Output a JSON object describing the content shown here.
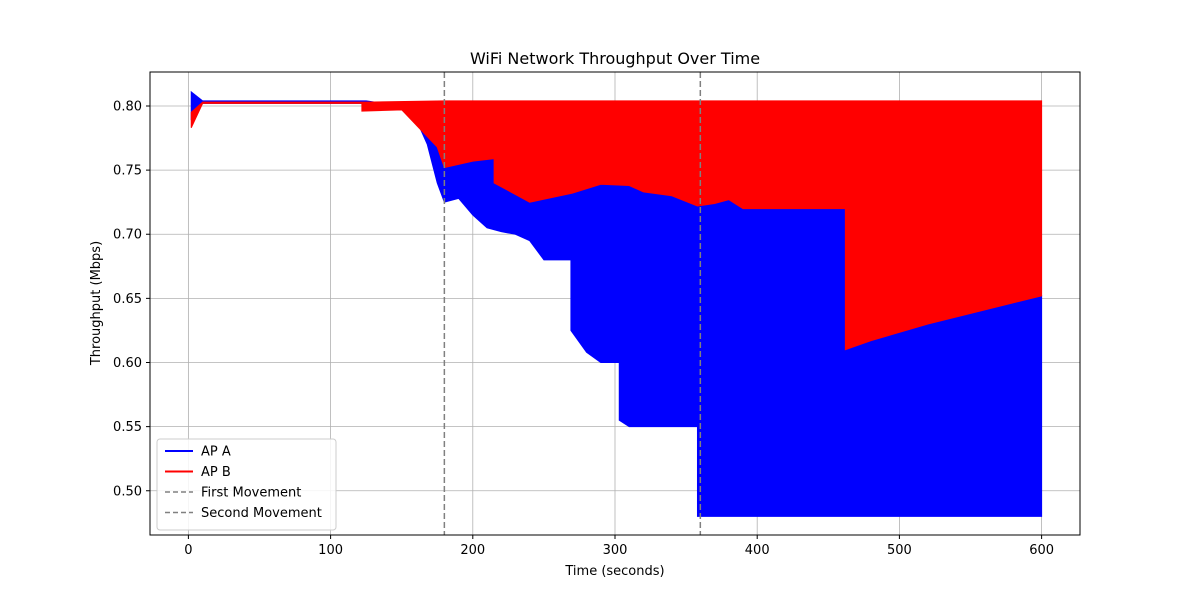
{
  "chart_data": {
    "type": "line",
    "title": "WiFi Network Throughput Over Time",
    "xlabel": "Time (seconds)",
    "ylabel": "Throughput (Mbps)",
    "xlim": [
      -27,
      627
    ],
    "ylim": [
      0.4655,
      0.8265
    ],
    "xticks": [
      0,
      100,
      200,
      300,
      400,
      500,
      600
    ],
    "xtick_labels": [
      "0",
      "100",
      "200",
      "300",
      "400",
      "500",
      "600"
    ],
    "yticks": [
      0.5,
      0.55,
      0.6,
      0.65,
      0.7,
      0.75,
      0.8
    ],
    "ytick_labels": [
      "0.50",
      "0.55",
      "0.60",
      "0.65",
      "0.70",
      "0.75",
      "0.80"
    ],
    "grid": true,
    "legend_position": "lower-left",
    "series": [
      {
        "name": "AP A",
        "color": "#0000ff",
        "style": "solid",
        "oscillating_band": true,
        "upper_envelope": [
          [
            2,
            0.811
          ],
          [
            10,
            0.804
          ],
          [
            125,
            0.804
          ],
          [
            150,
            0.8
          ],
          [
            160,
            0.79
          ],
          [
            168,
            0.77
          ],
          [
            175,
            0.74
          ],
          [
            180,
            0.725
          ],
          [
            190,
            0.728
          ],
          [
            200,
            0.715
          ],
          [
            210,
            0.705
          ],
          [
            220,
            0.702
          ],
          [
            230,
            0.7
          ],
          [
            240,
            0.695
          ],
          [
            250,
            0.68
          ],
          [
            269,
            0.68
          ],
          [
            269,
            0.625
          ],
          [
            280,
            0.608
          ],
          [
            290,
            0.6
          ],
          [
            303,
            0.6
          ],
          [
            303,
            0.555
          ],
          [
            310,
            0.55
          ],
          [
            358,
            0.55
          ],
          [
            358,
            0.48
          ],
          [
            600,
            0.48
          ]
        ],
        "lower_envelope": [
          [
            2,
            0.79
          ],
          [
            10,
            0.802
          ],
          [
            125,
            0.802
          ],
          [
            150,
            0.798
          ],
          [
            170,
            0.79
          ],
          [
            180,
            0.752
          ],
          [
            200,
            0.757
          ],
          [
            215,
            0.759
          ],
          [
            240,
            0.725
          ],
          [
            270,
            0.732
          ],
          [
            290,
            0.739
          ],
          [
            310,
            0.738
          ],
          [
            320,
            0.733
          ],
          [
            340,
            0.73
          ],
          [
            358,
            0.722
          ],
          [
            370,
            0.724
          ],
          [
            380,
            0.727
          ],
          [
            390,
            0.72
          ],
          [
            462,
            0.72
          ],
          [
            462,
            0.61
          ],
          [
            480,
            0.617
          ],
          [
            520,
            0.63
          ],
          [
            560,
            0.641
          ],
          [
            600,
            0.652
          ]
        ]
      },
      {
        "name": "AP B",
        "color": "#ff0000",
        "style": "solid",
        "oscillating_band": true,
        "upper_envelope": [
          [
            2,
            0.795
          ],
          [
            10,
            0.803
          ],
          [
            125,
            0.803
          ],
          [
            180,
            0.804
          ],
          [
            600,
            0.804
          ]
        ],
        "lower_envelope": [
          [
            2,
            0.783
          ],
          [
            10,
            0.802
          ],
          [
            122,
            0.802
          ],
          [
            122,
            0.796
          ],
          [
            150,
            0.797
          ],
          [
            175,
            0.768
          ],
          [
            180,
            0.752
          ],
          [
            200,
            0.757
          ],
          [
            215,
            0.759
          ],
          [
            215,
            0.74
          ],
          [
            240,
            0.725
          ],
          [
            270,
            0.732
          ],
          [
            290,
            0.739
          ],
          [
            310,
            0.738
          ],
          [
            320,
            0.733
          ],
          [
            340,
            0.73
          ],
          [
            358,
            0.722
          ],
          [
            370,
            0.724
          ],
          [
            380,
            0.727
          ],
          [
            390,
            0.72
          ],
          [
            462,
            0.72
          ],
          [
            462,
            0.61
          ],
          [
            480,
            0.617
          ],
          [
            520,
            0.63
          ],
          [
            560,
            0.641
          ],
          [
            600,
            0.652
          ]
        ]
      }
    ],
    "vlines": [
      {
        "name": "First Movement",
        "x": 180,
        "color": "#808080",
        "style": "dashed"
      },
      {
        "name": "Second Movement",
        "x": 360,
        "color": "#808080",
        "style": "dashed"
      }
    ],
    "legend": [
      {
        "label": "AP A",
        "color": "#0000ff",
        "style": "solid"
      },
      {
        "label": "AP B",
        "color": "#ff0000",
        "style": "solid"
      },
      {
        "label": "First Movement",
        "color": "#808080",
        "style": "dashed"
      },
      {
        "label": "Second Movement",
        "color": "#808080",
        "style": "dashed"
      }
    ]
  }
}
